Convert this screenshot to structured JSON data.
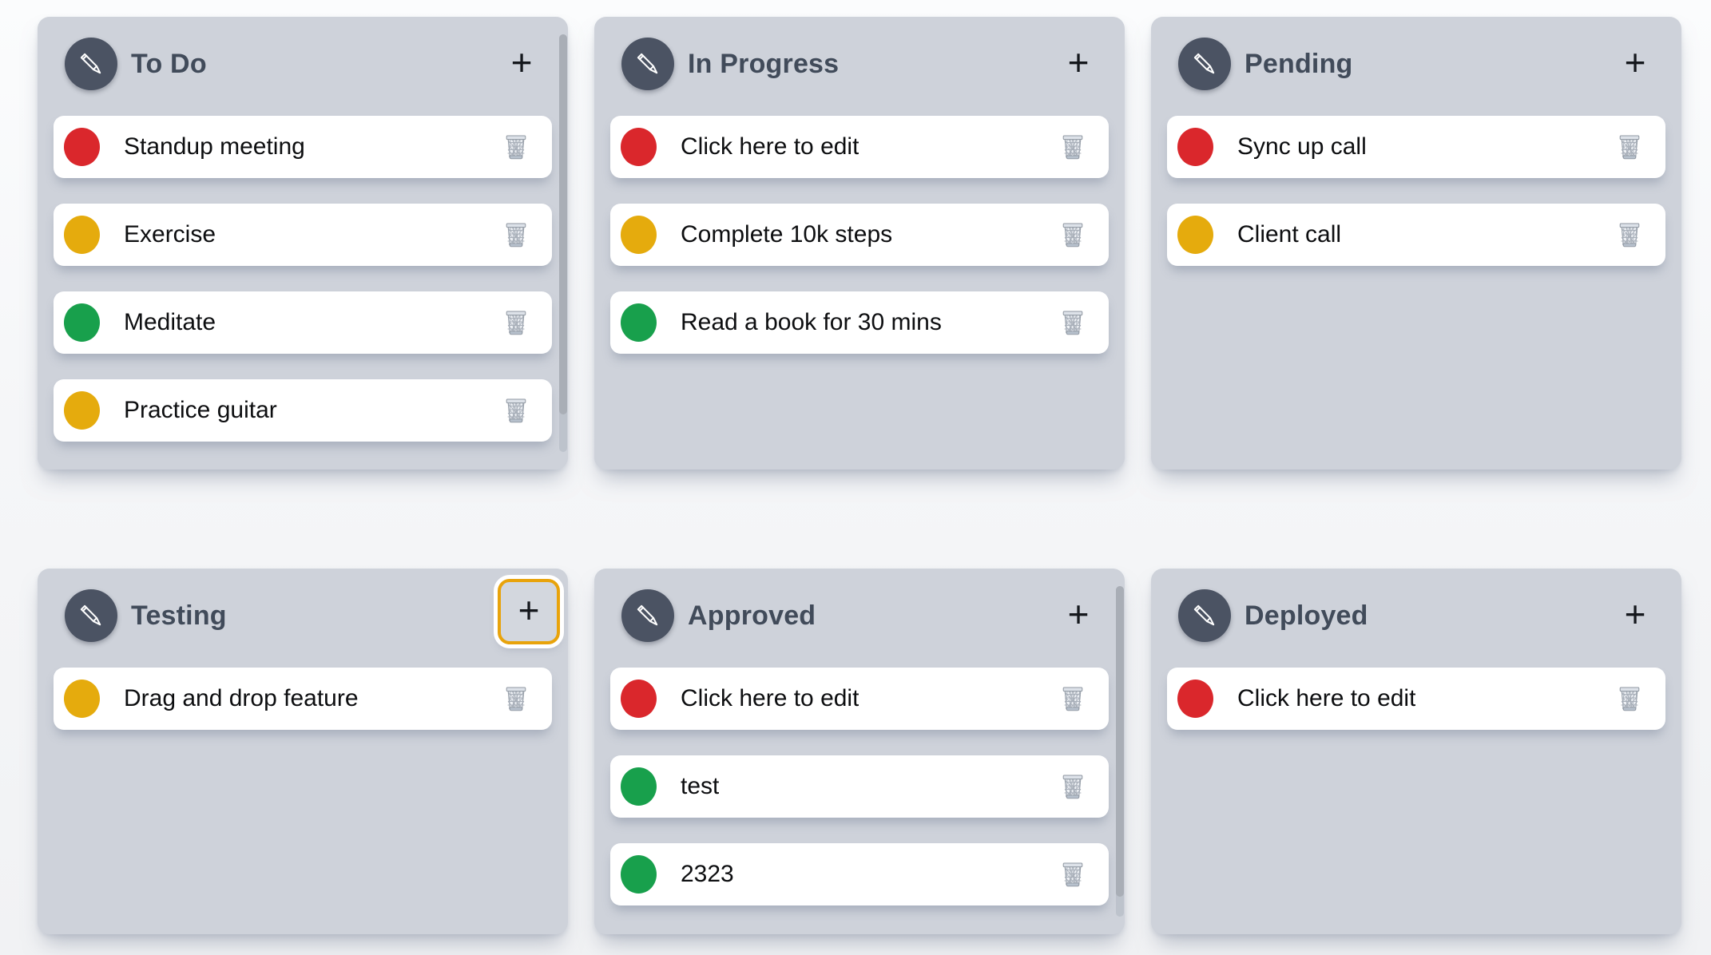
{
  "board": {
    "add_button_label": "+",
    "colors": {
      "red": "#da272c",
      "yellow": "#e5ab0d",
      "green": "#18a04c",
      "column_bg": "#ced2da",
      "header_circle": "#4b5363",
      "title_text": "#414b5a",
      "focus_ring": "#e8a30b",
      "scroll_thumb": "#a9aeb6"
    },
    "columns": [
      {
        "title": "To Do",
        "add_focused": false,
        "scrollbar": {
          "visible": true,
          "thumb_pct": 91
        },
        "cards": [
          {
            "text": "Standup meeting",
            "dot": "red"
          },
          {
            "text": "Exercise",
            "dot": "yellow"
          },
          {
            "text": "Meditate",
            "dot": "green"
          },
          {
            "text": "Practice guitar",
            "dot": "yellow"
          }
        ]
      },
      {
        "title": "In Progress",
        "add_focused": false,
        "scrollbar": {
          "visible": false,
          "thumb_pct": 0
        },
        "cards": [
          {
            "text": "Click here to edit",
            "dot": "red"
          },
          {
            "text": "Complete 10k steps",
            "dot": "yellow"
          },
          {
            "text": "Read a book for 30 mins",
            "dot": "green"
          }
        ]
      },
      {
        "title": "Pending",
        "add_focused": false,
        "scrollbar": {
          "visible": false,
          "thumb_pct": 0
        },
        "cards": [
          {
            "text": "Sync up call",
            "dot": "red"
          },
          {
            "text": "Client call",
            "dot": "yellow"
          }
        ]
      },
      {
        "title": "Testing",
        "add_focused": true,
        "scrollbar": {
          "visible": false,
          "thumb_pct": 0
        },
        "cards": [
          {
            "text": "Drag and drop feature",
            "dot": "yellow"
          }
        ]
      },
      {
        "title": "Approved",
        "add_focused": false,
        "scrollbar": {
          "visible": true,
          "thumb_pct": 94
        },
        "cards": [
          {
            "text": "Click here to edit",
            "dot": "red"
          },
          {
            "text": "test",
            "dot": "green"
          },
          {
            "text": "2323",
            "dot": "green"
          }
        ]
      },
      {
        "title": "Deployed",
        "add_focused": false,
        "scrollbar": {
          "visible": false,
          "thumb_pct": 0
        },
        "cards": [
          {
            "text": "Click here to edit",
            "dot": "red"
          }
        ]
      }
    ]
  }
}
